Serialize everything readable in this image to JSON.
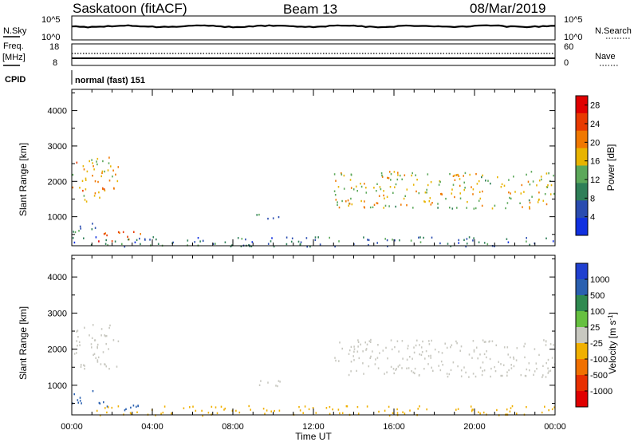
{
  "header": {
    "station": "Saskatoon (fitACF)",
    "beam": "Beam 13",
    "date": "08/Mar/2019"
  },
  "strip_panels": {
    "nsky": {
      "left_label": "N.Sky",
      "left_ticks": [
        "10^5",
        "10^0"
      ],
      "right_label": "N.Search",
      "right_ticks": [
        "10^5",
        "10^0"
      ]
    },
    "freq": {
      "left_label_line1": "Freq.",
      "left_label_line2": "[MHz]",
      "left_ticks": [
        "18",
        "8"
      ],
      "right_label": "Nave",
      "right_ticks": [
        "60",
        "0"
      ]
    },
    "cpid": {
      "label": "CPID",
      "value": "normal (fast) 151"
    }
  },
  "colors": {
    "power_scale": [
      "#1030e0",
      "#2a4cb0",
      "#2f7f58",
      "#5ca85a",
      "#e8b400",
      "#f07800",
      "#e83a00",
      "#e00000"
    ],
    "velocity_scale": [
      "#2040d0",
      "#2a60b0",
      "#2f8a50",
      "#66c040",
      "#c8c8c0",
      "#f0b000",
      "#f07000",
      "#e83000",
      "#e00000"
    ]
  },
  "chart_data": [
    {
      "type": "heatmap",
      "name": "power",
      "ylabel": "Slant Range [km]",
      "xlabel": "Time UT",
      "x_ticks": [
        "00:00",
        "04:00",
        "08:00",
        "12:00",
        "16:00",
        "20:00",
        "00:00"
      ],
      "xlim_hours": [
        0,
        24
      ],
      "ylim_km": [
        180,
        4600
      ],
      "y_ticks": [
        1000,
        2000,
        3000,
        4000
      ],
      "colorbar_label": "Power [dB]",
      "colorbar_ticks": [
        4,
        8,
        12,
        16,
        20,
        24,
        28
      ],
      "colorbar_range": [
        0,
        30
      ],
      "echo_regions": [
        {
          "t0": 0.0,
          "t1": 2.3,
          "r0": 1450,
          "r1": 2700,
          "level": 18
        },
        {
          "t0": 0.0,
          "t1": 1.2,
          "r0": 500,
          "r1": 900,
          "level": 10
        },
        {
          "t0": 1.3,
          "t1": 3.4,
          "r0": 300,
          "r1": 600,
          "level": 24
        },
        {
          "t0": 13.0,
          "t1": 24.0,
          "r0": 1250,
          "r1": 2300,
          "level": 16
        },
        {
          "t0": 9.0,
          "t1": 10.8,
          "r0": 950,
          "r1": 1150,
          "level": 8
        },
        {
          "t0": 0.0,
          "t1": 24.0,
          "r0": 180,
          "r1": 450,
          "level": 8
        }
      ]
    },
    {
      "type": "heatmap",
      "name": "velocity",
      "ylabel": "Slant Range [km]",
      "xlabel": "Time UT",
      "x_ticks": [
        "00:00",
        "04:00",
        "08:00",
        "12:00",
        "16:00",
        "20:00",
        "00:00"
      ],
      "xlim_hours": [
        0,
        24
      ],
      "ylim_km": [
        180,
        4600
      ],
      "y_ticks": [
        1000,
        2000,
        3000,
        4000
      ],
      "colorbar_label": "Velocity [m s^-1]",
      "colorbar_ticks": [
        "1000",
        "500",
        "100",
        "25",
        "-25",
        "-100",
        "-500",
        "-1000"
      ],
      "echo_regions": [
        {
          "t0": 0.0,
          "t1": 2.3,
          "r0": 1450,
          "r1": 2700,
          "level": 0
        },
        {
          "t0": 0.0,
          "t1": 1.2,
          "r0": 500,
          "r1": 900,
          "level": 150
        },
        {
          "t0": 1.3,
          "t1": 3.4,
          "r0": 300,
          "r1": 600,
          "level": 120
        },
        {
          "t0": 13.0,
          "t1": 24.0,
          "r0": 1250,
          "r1": 2300,
          "level": 0
        },
        {
          "t0": 9.0,
          "t1": 10.8,
          "r0": 950,
          "r1": 1150,
          "level": 10
        },
        {
          "t0": 0.0,
          "t1": 24.0,
          "r0": 180,
          "r1": 450,
          "level": -60
        }
      ]
    }
  ]
}
